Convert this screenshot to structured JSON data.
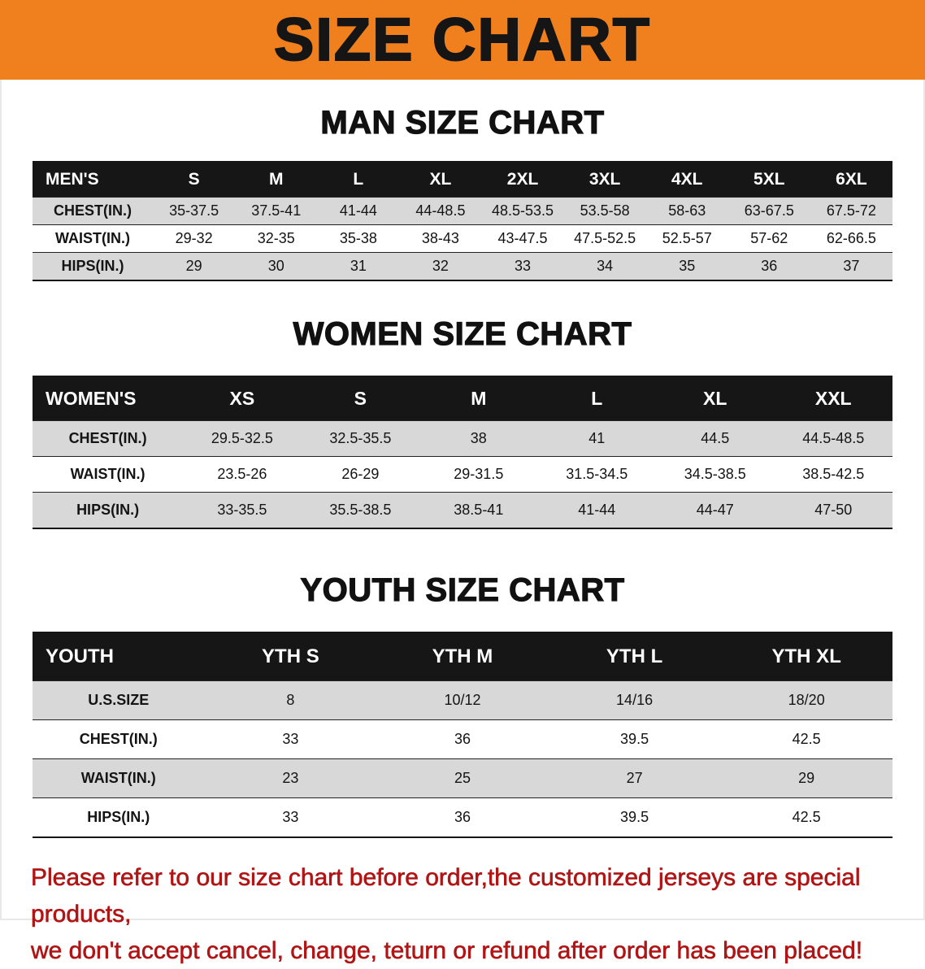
{
  "banner": {
    "title": "SIZE CHART"
  },
  "colors": {
    "banner_bg": "#f0801d",
    "header_row_bg": "#161616",
    "stripe_bg": "#d8d8d8",
    "disclaimer_color": "#b01414",
    "ink": "#141414"
  },
  "tables": [
    {
      "heading": "MAN SIZE CHART",
      "header": [
        "MEN'S",
        "S",
        "M",
        "L",
        "XL",
        "2XL",
        "3XL",
        "4XL",
        "5XL",
        "6XL"
      ],
      "rows": [
        [
          "CHEST(IN.)",
          "35-37.5",
          "37.5-41",
          "41-44",
          "44-48.5",
          "48.5-53.5",
          "53.5-58",
          "58-63",
          "63-67.5",
          "67.5-72"
        ],
        [
          "WAIST(IN.)",
          "29-32",
          "32-35",
          "35-38",
          "38-43",
          "43-47.5",
          "47.5-52.5",
          "52.5-57",
          "57-62",
          "62-66.5"
        ],
        [
          "HIPS(IN.)",
          "29",
          "30",
          "31",
          "32",
          "33",
          "34",
          "35",
          "36",
          "37"
        ]
      ]
    },
    {
      "heading": "WOMEN SIZE CHART",
      "header": [
        "WOMEN'S",
        "XS",
        "S",
        "M",
        "L",
        "XL",
        "XXL"
      ],
      "rows": [
        [
          "CHEST(IN.)",
          "29.5-32.5",
          "32.5-35.5",
          "38",
          "41",
          "44.5",
          "44.5-48.5"
        ],
        [
          "WAIST(IN.)",
          "23.5-26",
          "26-29",
          "29-31.5",
          "31.5-34.5",
          "34.5-38.5",
          "38.5-42.5"
        ],
        [
          "HIPS(IN.)",
          "33-35.5",
          "35.5-38.5",
          "38.5-41",
          "41-44",
          "44-47",
          "47-50"
        ]
      ]
    },
    {
      "heading": "YOUTH SIZE CHART",
      "header": [
        "YOUTH",
        "YTH S",
        "YTH M",
        "YTH L",
        "YTH XL"
      ],
      "rows": [
        [
          "U.S.SIZE",
          "8",
          "10/12",
          "14/16",
          "18/20"
        ],
        [
          "CHEST(IN.)",
          "33",
          "36",
          "39.5",
          "42.5"
        ],
        [
          "WAIST(IN.)",
          "23",
          "25",
          "27",
          "29"
        ],
        [
          "HIPS(IN.)",
          "33",
          "36",
          "39.5",
          "42.5"
        ]
      ]
    }
  ],
  "disclaimer": {
    "line1": "Please refer to our size chart before order,the customized jerseys are special products,",
    "line2": "we don't accept cancel, change, teturn or refund after order has been placed!"
  }
}
